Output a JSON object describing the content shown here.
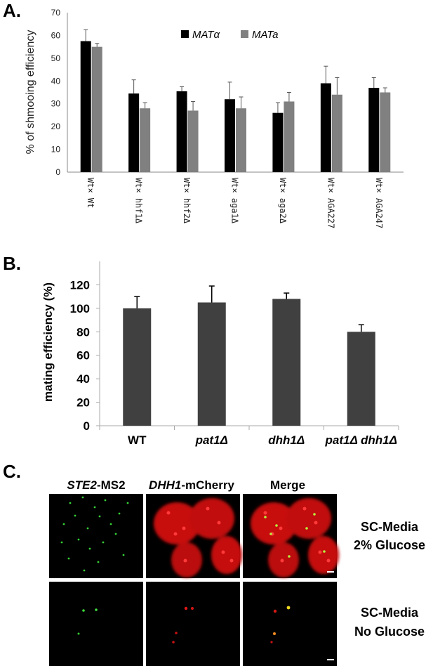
{
  "panels": {
    "a": "A.",
    "b": "B.",
    "c": "C."
  },
  "chart_data": [
    {
      "type": "bar",
      "ylabel": "% of shmooing efficiency",
      "xlabel": "",
      "ylim": [
        0,
        70
      ],
      "yticks": [
        0,
        10,
        20,
        30,
        40,
        50,
        60,
        70
      ],
      "categories": [
        "Wt× Wt",
        "Wt× hhf1Δ",
        "Wt× hhf2Δ",
        "Wt× aga1Δ",
        "Wt× aga2Δ",
        "Wt× AGA227",
        "Wt× AGA247"
      ],
      "series": [
        {
          "name": "MATα",
          "color": "#000000",
          "values": [
            57.5,
            34.5,
            35.5,
            32,
            26,
            39,
            37
          ],
          "errors": [
            5,
            6,
            2,
            7.5,
            4.5,
            7.5,
            4.5
          ]
        },
        {
          "name": "MATa",
          "color": "#808080",
          "values": [
            55,
            28,
            27,
            28,
            31,
            34,
            35
          ],
          "errors": [
            1.5,
            2.5,
            4,
            5,
            4,
            7.5,
            2
          ]
        }
      ],
      "legend_position": "top-center",
      "grid": false
    },
    {
      "type": "bar",
      "ylabel": "mating efficiency (%)",
      "xlabel": "",
      "ylim": [
        0,
        140
      ],
      "yticks": [
        0,
        20,
        40,
        60,
        80,
        100,
        120
      ],
      "categories": [
        "WT",
        "pat1Δ",
        "dhh1Δ",
        "pat1Δ dhh1Δ"
      ],
      "category_italic_part": [
        false,
        true,
        true,
        true
      ],
      "series": [
        {
          "color": "#404040",
          "values": [
            100,
            105,
            108,
            80
          ],
          "errors": [
            10,
            14,
            5,
            6
          ]
        }
      ],
      "grid": false
    }
  ],
  "micrographs": {
    "columns": [
      {
        "gene": "STE2",
        "suffix": "-MS2"
      },
      {
        "gene": "DHH1",
        "suffix": "-mCherry"
      },
      {
        "gene": "",
        "suffix": "Merge"
      }
    ],
    "rows": [
      {
        "line1": "SC-Media",
        "line2": "2% Glucose"
      },
      {
        "line1": "SC-Media",
        "line2": "No Glucose"
      }
    ]
  }
}
